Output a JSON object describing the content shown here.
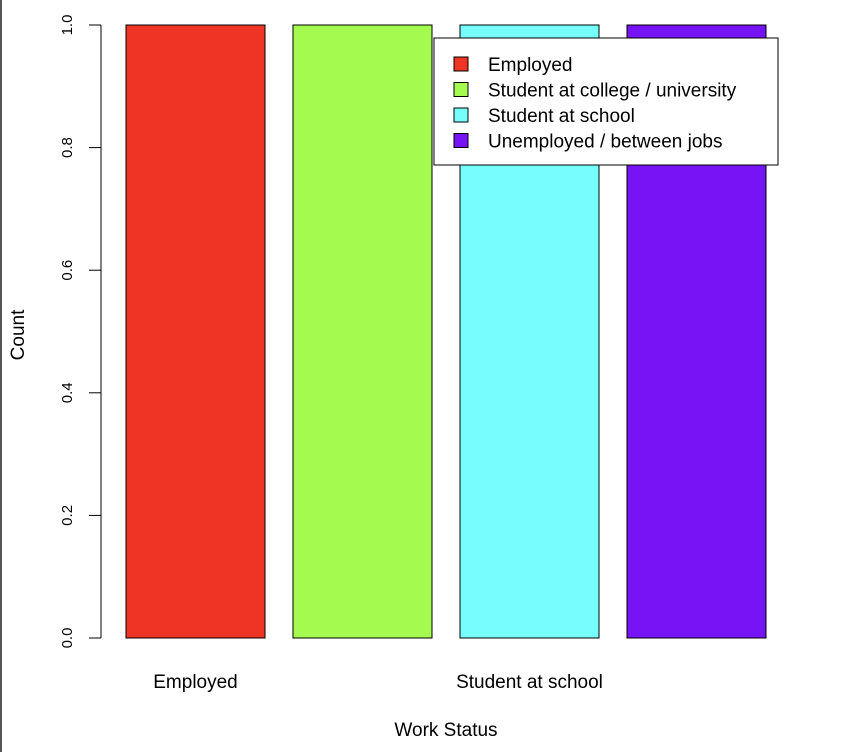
{
  "chart_data": {
    "type": "bar",
    "categories": [
      "Employed",
      "Student at college / university",
      "Student at school",
      "Unemployed / between jobs"
    ],
    "values": [
      1,
      1,
      1,
      1
    ],
    "category_labels_shown": [
      "Employed",
      "",
      "Student at school",
      ""
    ],
    "colors": [
      "#EE3424",
      "#A4FA4E",
      "#76FEFD",
      "#7614F5"
    ],
    "xlabel": "Work Status",
    "ylabel": "Count",
    "ylim": [
      0,
      1
    ],
    "yticks": [
      "0.0",
      "0.2",
      "0.4",
      "0.6",
      "0.8",
      "1.0"
    ],
    "ytick_values": [
      0,
      0.2,
      0.4,
      0.6,
      0.8,
      1.0
    ],
    "grid": false,
    "legend": {
      "placement": "top-right",
      "entries": [
        "Employed",
        "Student at college / university",
        "Student at school",
        "Unemployed / between jobs"
      ]
    }
  }
}
